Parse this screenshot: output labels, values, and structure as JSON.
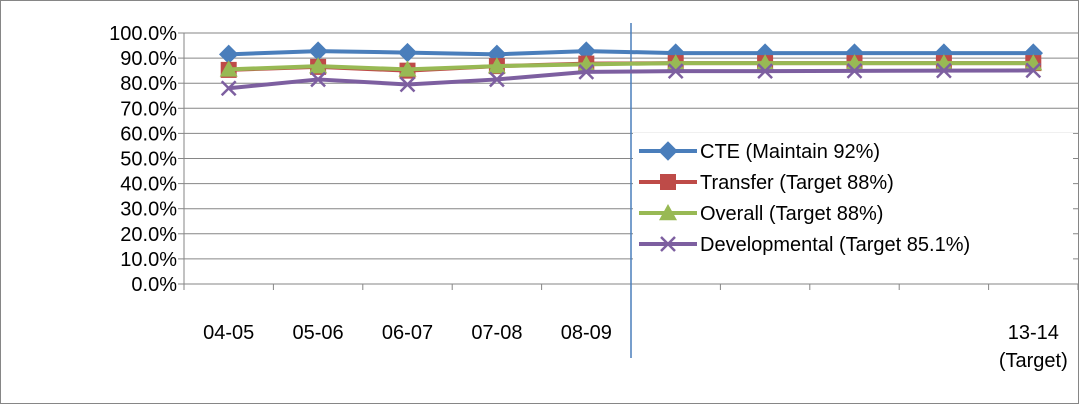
{
  "chart_data": {
    "type": "line",
    "categories": [
      "04-05",
      "05-06",
      "06-07",
      "07-08",
      "08-09",
      "",
      "",
      "",
      "",
      "13-14 (Target)"
    ],
    "category_labels": [
      [
        "04-05"
      ],
      [
        "05-06"
      ],
      [
        "06-07"
      ],
      [
        "07-08"
      ],
      [
        "08-09"
      ],
      [],
      [],
      [],
      [],
      [
        "13-14",
        "(Target)"
      ]
    ],
    "y_ticks": [
      "0.0%",
      "10.0%",
      "20.0%",
      "30.0%",
      "40.0%",
      "50.0%",
      "60.0%",
      "70.0%",
      "80.0%",
      "90.0%",
      "100.0%"
    ],
    "ylim": [
      0,
      100
    ],
    "y_unit": "%",
    "grid": "horizontal",
    "legend_position": "inside-right",
    "reference_line_after_category": "08-09",
    "series": [
      {
        "name": "CTE (Maintain 92%)",
        "color": "#4a7ebb",
        "marker": "diamond",
        "values": [
          91.5,
          92.8,
          92.2,
          91.5,
          92.8,
          92.0,
          92.0,
          92.0,
          92.0,
          92.0
        ]
      },
      {
        "name": "Transfer (Target 88%)",
        "color": "#be4b48",
        "marker": "square",
        "values": [
          85.3,
          86.5,
          85.0,
          86.8,
          87.8,
          88.0,
          88.0,
          88.0,
          88.0,
          88.0
        ]
      },
      {
        "name": "Overall (Target 88%)",
        "color": "#98b954",
        "marker": "triangle",
        "values": [
          85.5,
          86.8,
          85.5,
          86.8,
          87.5,
          88.0,
          88.0,
          88.0,
          88.0,
          88.0
        ]
      },
      {
        "name": "Developmental (Target 85.1%)",
        "color": "#7d5fa0",
        "marker": "x",
        "values": [
          78.0,
          81.5,
          79.5,
          81.5,
          84.5,
          84.8,
          84.8,
          84.9,
          85.0,
          85.1
        ]
      }
    ],
    "reference_line_color": "#4a7ebb",
    "axis_color": "#868686",
    "grid_color": "#868686"
  }
}
